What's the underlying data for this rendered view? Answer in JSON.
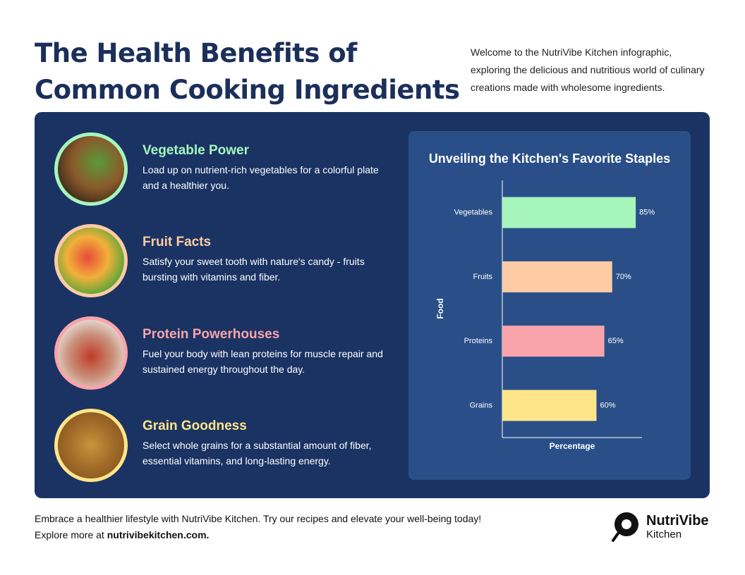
{
  "header": {
    "title_lines": [
      "The Health Benefits of",
      "Common Cooking Ingredients"
    ],
    "intro": "Welcome to the NutriVibe Kitchen infographic, exploring the delicious and nutritious world of culinary creations made with wholesome ingredients."
  },
  "sections": [
    {
      "heading": "Vegetable Power",
      "text": "Load up on nutrient-rich vegetables for a colorful plate and a healthier you."
    },
    {
      "heading": "Fruit Facts",
      "text": "Satisfy your sweet tooth with nature's candy - fruits bursting with vitamins and fiber."
    },
    {
      "heading": "Protein Powerhouses",
      "text": "Fuel your body with lean proteins for muscle repair and sustained energy throughout the day."
    },
    {
      "heading": "Grain Goodness",
      "text": "Select whole grains for a substantial amount of fiber, essential vitamins, and long-lasting energy."
    }
  ],
  "chart_data": {
    "type": "bar",
    "orientation": "horizontal",
    "title": "Unveiling the Kitchen's Favorite Staples",
    "x_label": "Percentage",
    "y_label": "Food",
    "categories": [
      "Vegetables",
      "Fruits",
      "Proteins",
      "Grains"
    ],
    "values": [
      85,
      70,
      65,
      60
    ],
    "value_labels": [
      "85%",
      "70%",
      "65%",
      "60%"
    ],
    "colors": [
      "#a6f5bd",
      "#ffcba4",
      "#f9a3ab",
      "#ffe58a"
    ],
    "xlim": [
      0,
      89
    ]
  },
  "footer": {
    "line1": "Embrace a healthier lifestyle with NutriVibe Kitchen. Try our recipes and elevate your well-being today!",
    "line2_prefix": "Explore more at",
    "link": "nutrivibekitchen.com.",
    "brand": "NutriVibe",
    "brand_sub": "Kitchen"
  }
}
